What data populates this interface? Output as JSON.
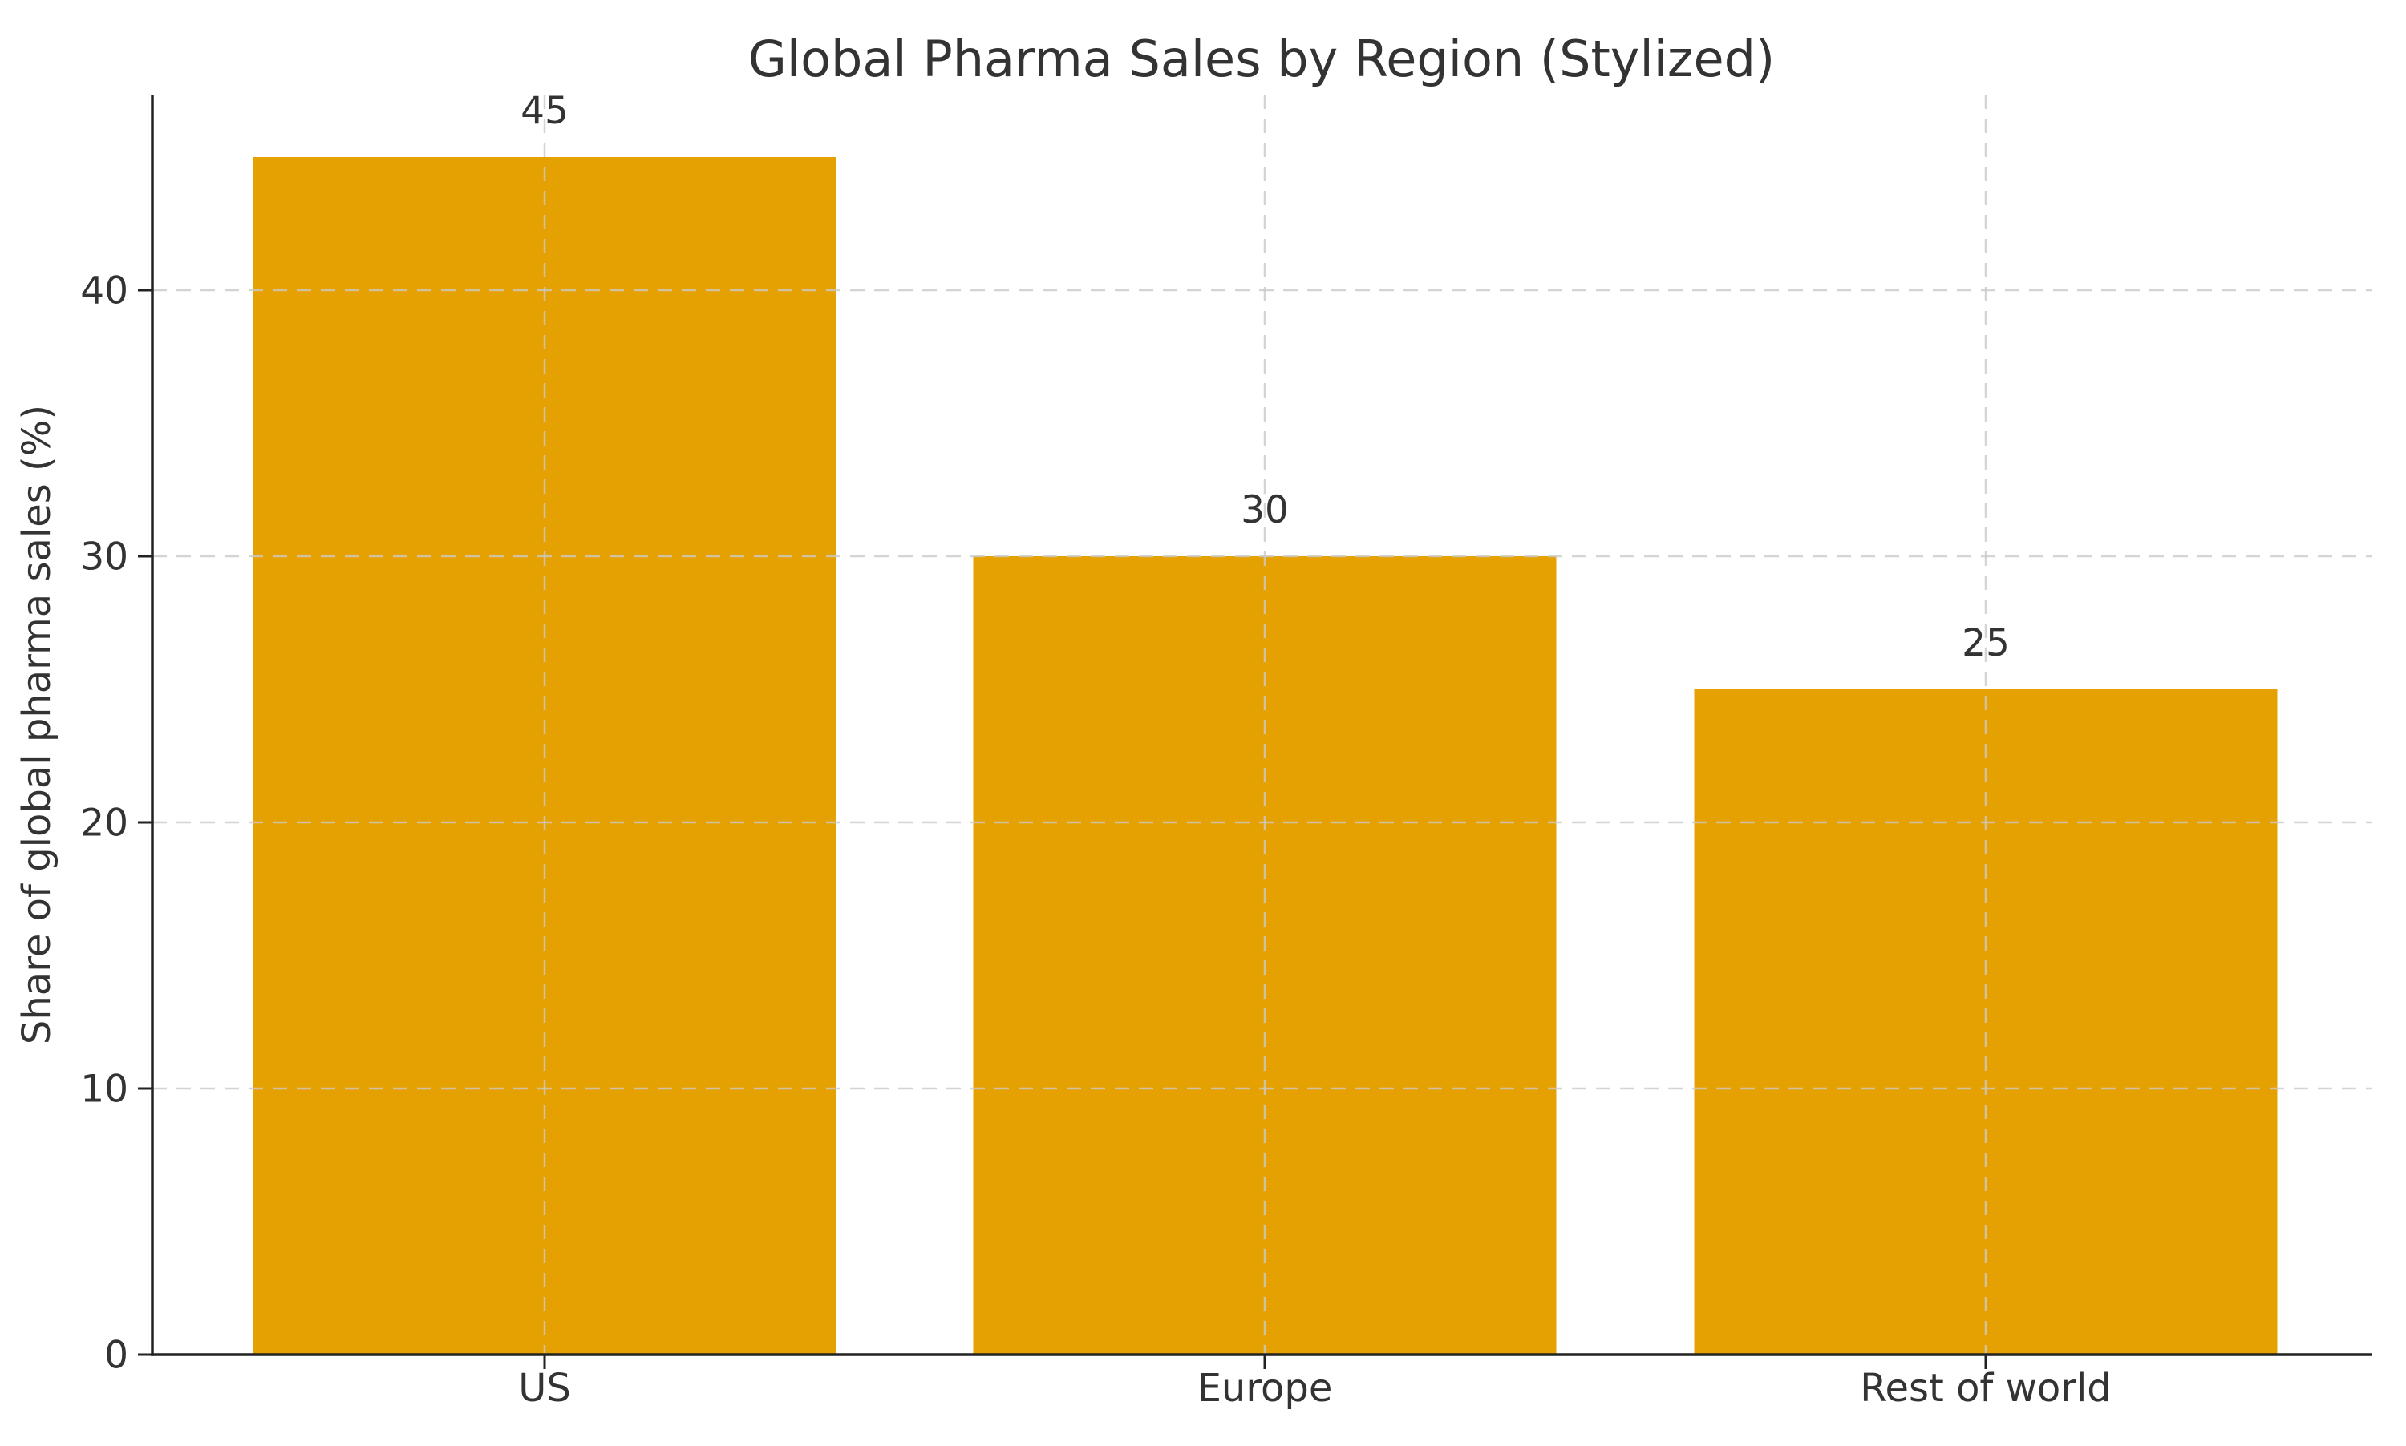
{
  "chart_data": {
    "type": "bar",
    "title": "Global Pharma Sales by Region (Stylized)",
    "ylabel": "Share of global pharma sales (%)",
    "xlabel": "",
    "categories": [
      "US",
      "Europe",
      "Rest of world"
    ],
    "values": [
      45,
      30,
      25
    ],
    "bar_value_labels": [
      "45",
      "30",
      "25"
    ],
    "yticks": [
      0,
      10,
      20,
      30,
      40
    ],
    "ylim": [
      0,
      47.3
    ],
    "legend_position": "none",
    "grid": "dashed gridlines on both axes, drawn above bars",
    "bar_color": "#E5A102",
    "text_color": "#333333",
    "spine_color": "#222222",
    "grid_color": "#c9c9c9"
  }
}
